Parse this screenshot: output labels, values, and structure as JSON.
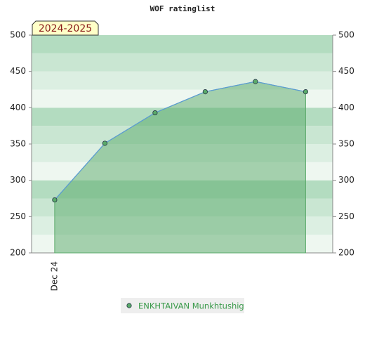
{
  "chart_data": {
    "type": "area",
    "title": "WOF ratinglist",
    "annotation": "2024-2025",
    "categories": [
      "Dec 24",
      null,
      null,
      null,
      null,
      null
    ],
    "series": [
      {
        "name": "ENKHTAIVAN Munkhtushig",
        "color": "#5aaa6a",
        "values": [
          273,
          351,
          393,
          422,
          436,
          422
        ]
      }
    ],
    "ylim": [
      200,
      500
    ],
    "yticks": [
      200,
      250,
      300,
      350,
      400,
      450,
      500
    ],
    "y2lim": [
      200,
      500
    ],
    "y2ticks": [
      200,
      250,
      300,
      350,
      400,
      450,
      500
    ]
  }
}
